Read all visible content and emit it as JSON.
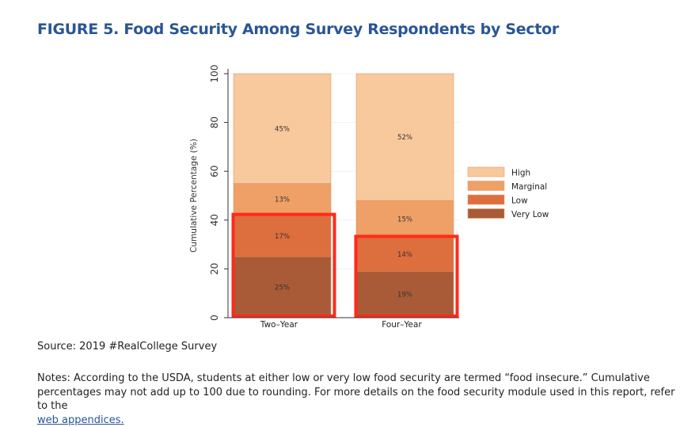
{
  "title": "FIGURE 5. Food Security Among Survey Respondents by Sector",
  "source": "Source: 2019 #RealCollege Survey",
  "notes": "Notes: According to the USDA, students at either low or very low food security are termed “food insecure.” Cumulative percentages may not add up to 100 due to rounding. For more details on the food security module used in this report, refer to the",
  "notes_link": "web appendices.",
  "chart_data": {
    "type": "bar",
    "stacked": true,
    "categories": [
      "Two-Year",
      "Four-Year"
    ],
    "ylabel": "Cumulative Percentage (%)",
    "xlabel": "",
    "ylim": [
      0,
      100
    ],
    "yticks": [
      0,
      20,
      40,
      60,
      80,
      100
    ],
    "grid": true,
    "legend_position": "right",
    "series": [
      {
        "name": "Very Low",
        "values": [
          25,
          19
        ],
        "labels": [
          "25%",
          "19%"
        ],
        "color": "#a95b37"
      },
      {
        "name": "Low",
        "values": [
          17,
          14
        ],
        "labels": [
          "17%",
          "14%"
        ],
        "color": "#dd6e3e"
      },
      {
        "name": "Marginal",
        "values": [
          13,
          15
        ],
        "labels": [
          "13%",
          "15%"
        ],
        "color": "#eea066"
      },
      {
        "name": "High",
        "values": [
          45,
          52
        ],
        "labels": [
          "45%",
          "52%"
        ],
        "color": "#f7c99c"
      }
    ],
    "highlight": {
      "description_series": [
        "Very Low",
        "Low"
      ],
      "color": "#ff2a1a"
    }
  }
}
